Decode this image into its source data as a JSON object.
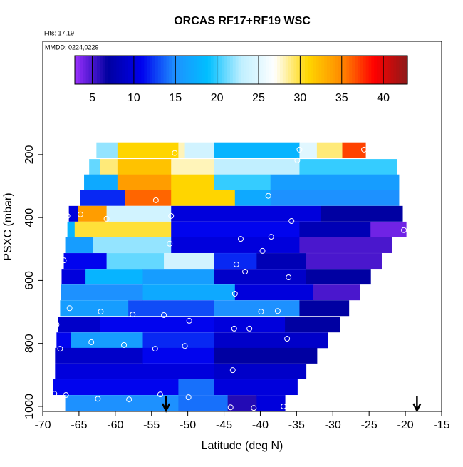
{
  "chart_data": {
    "type": "heatmap",
    "title": "ORCAS RF17+RF19 WSC",
    "subtitle": "Flts: 17,19",
    "annotation": "MMDD: 0224,0229",
    "xlabel": "Latitude (deg N)",
    "ylabel": "PSXC (mbar)",
    "xlim": [
      -70,
      -15
    ],
    "ylim": [
      1016,
      -160
    ],
    "xticks": [
      -70,
      -65,
      -60,
      -55,
      -50,
      -45,
      -40,
      -35,
      -30,
      -25,
      -20,
      -15
    ],
    "yticks": [
      200,
      400,
      600,
      800,
      1000
    ],
    "colorbar": {
      "zlim": [
        2.9,
        42.9
      ],
      "ticks": [
        5,
        10,
        15,
        20,
        25,
        30,
        35,
        40
      ],
      "colors": [
        "#9b30ff",
        "#0000a0",
        "#0000ee",
        "#1e90ff",
        "#00bfff",
        "#bfefff",
        "#ffffff",
        "#ffd700",
        "#ff8c00",
        "#ff0000",
        "#8b1a1a"
      ]
    },
    "rows": [
      {
        "p": 186,
        "lat": [
          -62.6,
          -59.7,
          -51.3,
          -50.4,
          -46.4,
          -34.6,
          -32.2,
          -28.7,
          -25.5
        ],
        "values": [
          22,
          31,
          28,
          24,
          18,
          25,
          29,
          37
        ]
      },
      {
        "p": 239,
        "lat": [
          -63.6,
          -62.1,
          -59.7,
          -52.3,
          -46.4,
          -34.6,
          -21.2
        ],
        "values": [
          21,
          29,
          32,
          28,
          23,
          20
        ]
      },
      {
        "p": 288,
        "lat": [
          -64.3,
          -59.7,
          -52.3,
          -46.4,
          -38.6,
          -20.9
        ],
        "values": [
          17,
          34,
          31,
          20,
          16
        ]
      },
      {
        "p": 338,
        "lat": [
          -64.8,
          -58.7,
          -52.3,
          -43.5,
          -38.6,
          -20.9
        ],
        "values": [
          12,
          36,
          31,
          17,
          15
        ]
      },
      {
        "p": 388,
        "lat": [
          -66.4,
          -65.1,
          -61.2,
          -52.3,
          -31.7,
          -20.4
        ],
        "values": [
          10,
          34,
          24,
          10,
          7
        ]
      },
      {
        "p": 438,
        "lat": [
          -66.6,
          -65.6,
          -52.3,
          -34.6,
          -24.8,
          -19.9
        ],
        "values": [
          18,
          30,
          11,
          8,
          4
        ]
      },
      {
        "p": 488,
        "lat": [
          -66.9,
          -63.1,
          -52.3,
          -34.6,
          -21.9
        ],
        "values": [
          16,
          22,
          10,
          5
        ]
      },
      {
        "p": 538,
        "lat": [
          -67.1,
          -61.2,
          -53.3,
          -46.4,
          -40.5,
          -33.7,
          -23.3
        ],
        "values": [
          11,
          21,
          24,
          12,
          8,
          5
        ]
      },
      {
        "p": 588,
        "lat": [
          -67.4,
          -64.1,
          -56.2,
          -46.4,
          -33.7,
          -24.8
        ],
        "values": [
          10,
          18,
          16,
          9,
          7
        ]
      },
      {
        "p": 638,
        "lat": [
          -67.5,
          -56.2,
          -43.5,
          -32.7,
          -26.3
        ],
        "values": [
          15,
          17,
          10,
          5
        ]
      },
      {
        "p": 688,
        "lat": [
          -67.6,
          -58.2,
          -46.4,
          -34.6,
          -27.8
        ],
        "values": [
          16,
          13,
          15,
          7
        ]
      },
      {
        "p": 740,
        "lat": [
          -67.9,
          -62.1,
          -46.4,
          -36.6,
          -29.0
        ],
        "values": [
          9,
          11,
          10,
          7
        ]
      },
      {
        "p": 790,
        "lat": [
          -68.1,
          -66.1,
          -56.2,
          -46.4,
          -30.7
        ],
        "values": [
          11,
          16,
          12,
          9
        ]
      },
      {
        "p": 839,
        "lat": [
          -68.3,
          -56.2,
          -46.4,
          -32.2
        ],
        "values": [
          9,
          11,
          7
        ]
      },
      {
        "p": 889,
        "lat": [
          -68.3,
          -46.4,
          -33.7
        ],
        "values": [
          10,
          9
        ]
      },
      {
        "p": 939,
        "lat": [
          -68.6,
          -51.3,
          -46.4,
          -34.9
        ],
        "values": [
          11,
          14,
          10
        ]
      },
      {
        "p": 989,
        "lat": [
          -66.9,
          -51.3,
          -44.5,
          -40.5,
          -36.6
        ],
        "values": [
          15,
          14,
          6,
          10
        ]
      }
    ],
    "points": {
      "lat": [
        -51.8,
        -34.6,
        -34.9,
        -25.7,
        -38.9,
        -54.4,
        -66.0,
        -66.6,
        -61.2,
        -64.8,
        -52.3,
        -35.7,
        -20.2,
        -42.7,
        -38.5,
        -39.7,
        -52.5,
        -67.1,
        -43.3,
        -42.1,
        -36.1,
        -43.5,
        -66.3,
        -62.0,
        -57.6,
        -53.3,
        -49.8,
        -39.9,
        -37.6,
        -68.1,
        -43.6,
        -41.5,
        -36.3,
        -63.3,
        -58.8,
        -54.5,
        -50.4,
        -67.6,
        -43.8,
        -68.4,
        -66.8,
        -62.4,
        -58.1,
        -53.8,
        -49.9,
        -44.1,
        -40.9,
        -36.8
      ],
      "p": [
        195,
        184,
        218,
        184,
        331,
        345,
        327,
        395,
        404,
        390,
        395,
        411,
        440,
        468,
        461,
        506,
        483,
        536,
        549,
        572,
        590,
        642,
        688,
        699,
        708,
        710,
        728,
        699,
        697,
        740,
        753,
        753,
        785,
        796,
        805,
        817,
        808,
        817,
        885,
        960,
        964,
        976,
        978,
        962,
        971,
        1003,
        1005,
        1000
      ]
    },
    "arrows_lat": [
      -53,
      -18.4
    ]
  }
}
